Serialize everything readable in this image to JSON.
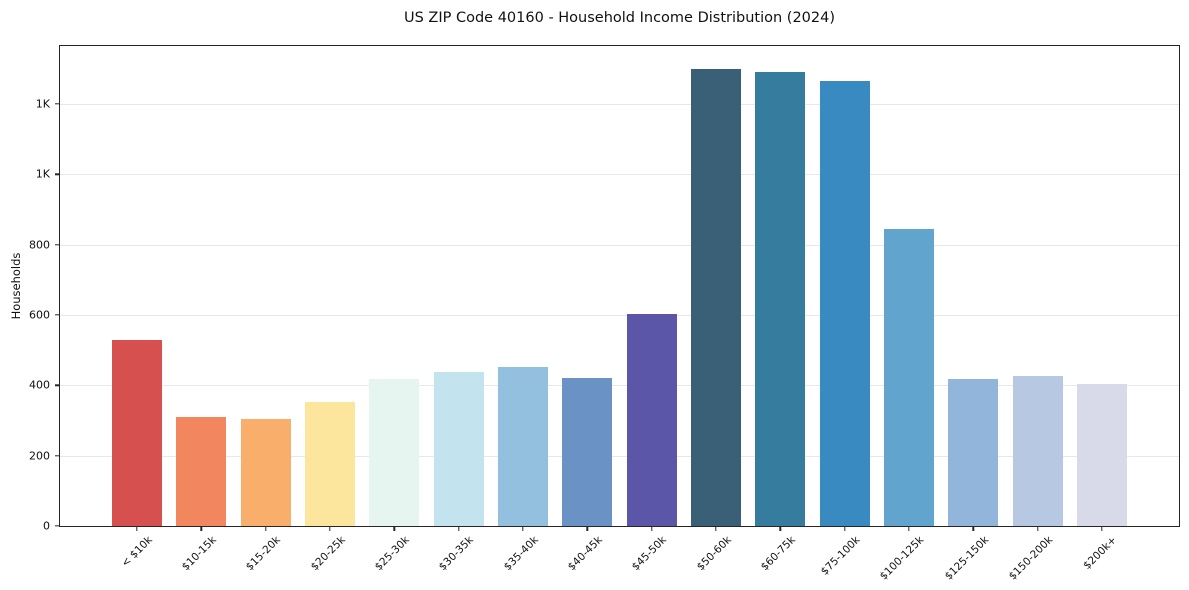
{
  "figure": {
    "background": "#ffffff",
    "frame_color": "#262626",
    "grid_color": "#e7e7ec"
  },
  "chart_data": {
    "type": "bar",
    "title": "US ZIP Code 40160 - Household Income Distribution (2024)",
    "xlabel": "",
    "ylabel": "Households",
    "categories": [
      "< $10k",
      "$10-15k",
      "$15-20k",
      "$20-25k",
      "$25-30k",
      "$30-35k",
      "$35-40k",
      "$40-45k",
      "$45-50k",
      "$50-60k",
      "$60-75k",
      "$75-100k",
      "$100-125k",
      "$125-150k",
      "$150-200k",
      "$200k+"
    ],
    "values": [
      528,
      309,
      303,
      352,
      418,
      438,
      453,
      422,
      604,
      1300,
      1291,
      1266,
      845,
      419,
      426,
      404
    ],
    "bar_colors": [
      "#d5504e",
      "#f2865f",
      "#f9ae6b",
      "#fce59c",
      "#e7f5f1",
      "#c3e3ee",
      "#93c0df",
      "#6a92c5",
      "#5b56a7",
      "#3a6078",
      "#357c9f",
      "#3a8ac2",
      "#61a5cf",
      "#92b6db",
      "#b7c9e2",
      "#d8daea"
    ],
    "ylim": [
      0,
      1365
    ],
    "yticks": [
      {
        "value": 0,
        "label": "0"
      },
      {
        "value": 200,
        "label": "200"
      },
      {
        "value": 400,
        "label": "400"
      },
      {
        "value": 600,
        "label": "600"
      },
      {
        "value": 800,
        "label": "800"
      },
      {
        "value": 1000,
        "label": "1K"
      },
      {
        "value": 1200,
        "label": "1K"
      }
    ],
    "grid": "horizontal",
    "legend": "none",
    "xtick_rotation": 45
  }
}
